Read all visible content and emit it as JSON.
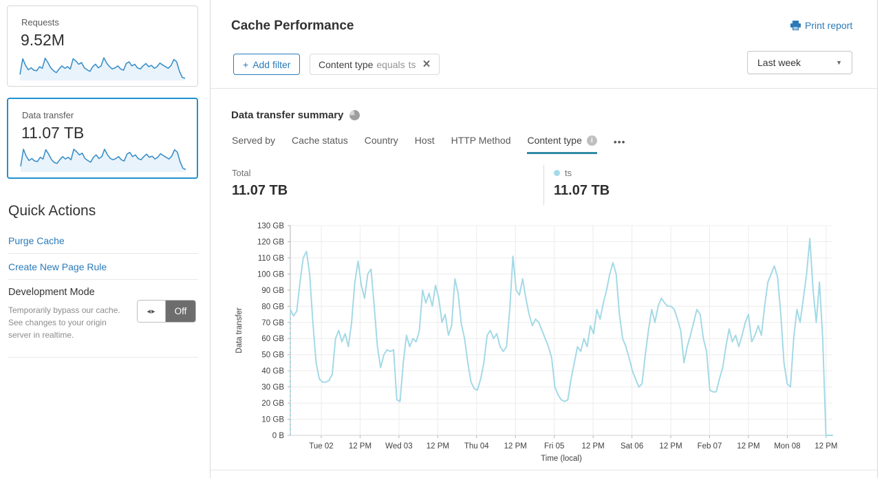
{
  "sidebar": {
    "cards": [
      {
        "label": "Requests",
        "value": "9.52M",
        "spark": [
          22,
          88,
          60,
          42,
          50,
          40,
          38,
          55,
          48,
          90,
          72,
          50,
          38,
          30,
          45,
          58,
          48,
          55,
          45,
          88,
          78,
          65,
          72,
          50,
          42,
          35,
          55,
          65,
          50,
          58,
          92,
          70,
          55,
          45,
          50,
          58,
          45,
          40,
          68,
          75,
          58,
          65,
          50,
          45,
          58,
          68,
          55,
          60,
          48,
          55,
          70,
          62,
          55,
          48,
          60,
          85,
          75,
          35,
          10,
          6
        ]
      },
      {
        "label": "Data transfer",
        "value": "11.07 TB",
        "selected": true,
        "spark": [
          20,
          90,
          62,
          44,
          52,
          42,
          40,
          57,
          50,
          88,
          70,
          48,
          36,
          32,
          47,
          60,
          50,
          57,
          47,
          90,
          80,
          67,
          74,
          52,
          44,
          37,
          57,
          67,
          52,
          60,
          90,
          68,
          53,
          47,
          52,
          60,
          47,
          42,
          70,
          77,
          60,
          67,
          52,
          47,
          60,
          70,
          57,
          62,
          50,
          57,
          72,
          64,
          57,
          50,
          62,
          88,
          78,
          38,
          12,
          7
        ]
      }
    ],
    "quick_actions": {
      "title": "Quick Actions",
      "links": [
        {
          "label": "Purge Cache"
        },
        {
          "label": "Create New Page Rule"
        }
      ],
      "dev_mode": {
        "title": "Development Mode",
        "description": "Temporarily bypass our cache. See changes to your origin server in realtime.",
        "state": "Off"
      }
    }
  },
  "header": {
    "title": "Cache Performance",
    "print_label": "Print report",
    "add_filter_label": "Add filter",
    "filter_chip": {
      "field": "Content type",
      "operator": "equals",
      "value": "ts"
    },
    "range_selected": "Last week"
  },
  "summary": {
    "title": "Data transfer summary",
    "tabs": [
      "Served by",
      "Cache status",
      "Country",
      "Host",
      "HTTP Method",
      "Content type"
    ],
    "active_tab": "Content type",
    "total_label": "Total",
    "total_value": "11.07 TB",
    "legend": {
      "name": "ts",
      "value": "11.07 TB",
      "color": "#a5dbe8"
    }
  },
  "chart_data": {
    "type": "line",
    "title": "Data transfer summary",
    "xlabel": "Time (local)",
    "ylabel": "Data transfer",
    "x_ticks": [
      "Tue 02",
      "12 PM",
      "Wed 03",
      "12 PM",
      "Thu 04",
      "12 PM",
      "Fri 05",
      "12 PM",
      "Sat 06",
      "12 PM",
      "Feb 07",
      "12 PM",
      "Mon 08",
      "12 PM"
    ],
    "y_ticks": [
      "0 B",
      "10 GB",
      "20 GB",
      "30 GB",
      "40 GB",
      "50 GB",
      "60 GB",
      "70 GB",
      "80 GB",
      "90 GB",
      "100 GB",
      "110 GB",
      "120 GB",
      "130 GB"
    ],
    "ylim": [
      0,
      130
    ],
    "unit_hint": "values in GB, hourly over last week",
    "grid": true,
    "line_color": "#a3d9e6",
    "leading_dashed_from_zero": true,
    "series": [
      {
        "name": "ts",
        "values": [
          78,
          74,
          77,
          95,
          110,
          114,
          100,
          70,
          45,
          35,
          33,
          33,
          34,
          38,
          60,
          65,
          58,
          63,
          55,
          70,
          95,
          108,
          93,
          85,
          100,
          103,
          80,
          55,
          42,
          50,
          53,
          52,
          53,
          22,
          21,
          45,
          62,
          55,
          60,
          58,
          65,
          90,
          82,
          88,
          80,
          93,
          85,
          70,
          75,
          62,
          68,
          97,
          88,
          69,
          60,
          45,
          33,
          29,
          28,
          35,
          45,
          62,
          65,
          60,
          63,
          55,
          52,
          55,
          78,
          111,
          90,
          87,
          97,
          85,
          75,
          68,
          72,
          70,
          65,
          60,
          55,
          48,
          30,
          25,
          22,
          21,
          22,
          35,
          45,
          55,
          52,
          60,
          55,
          68,
          63,
          78,
          72,
          82,
          90,
          100,
          107,
          100,
          75,
          60,
          55,
          48,
          40,
          35,
          30,
          32,
          50,
          65,
          78,
          70,
          80,
          85,
          82,
          80,
          80,
          78,
          72,
          65,
          45,
          55,
          62,
          70,
          78,
          75,
          60,
          52,
          28,
          27,
          27,
          35,
          42,
          55,
          66,
          58,
          62,
          55,
          62,
          70,
          75,
          58,
          62,
          68,
          62,
          80,
          95,
          100,
          105,
          98,
          75,
          45,
          32,
          30,
          60,
          78,
          70,
          85,
          100,
          122,
          90,
          70,
          95,
          60,
          0,
          0,
          0
        ]
      }
    ]
  },
  "icons": {
    "plus": "+",
    "close": "×",
    "caret": "▼",
    "more": "•••",
    "toggle_arrows": "◂▸",
    "info": "i"
  },
  "colors": {
    "link_blue": "#2a7ab9",
    "selected_card_border": "#2191d0",
    "spark_line": "#3a8fc8",
    "spark_fill": "#e9f3fb",
    "chart_line": "#a3d9e6",
    "tab_underline": "#2f8aa4",
    "toggle_off": "#6d6d6d"
  }
}
